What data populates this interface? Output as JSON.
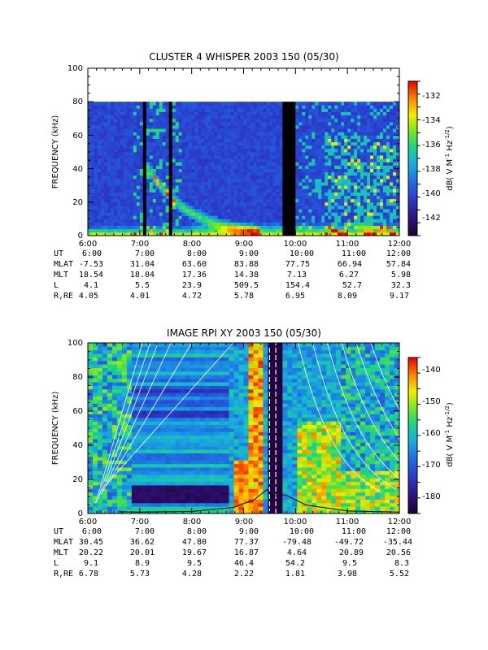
{
  "chart_data": [
    {
      "type": "heatmap",
      "title": "CLUSTER 4 WHISPER 2003 150 (05/30)",
      "ylabel": "FREQUENCY (kHz)",
      "ylim": [
        0,
        100
      ],
      "data_ymax": 80,
      "yticks": [
        "0",
        "20",
        "40",
        "60",
        "80",
        "100"
      ],
      "xlim_hours": [
        6,
        12
      ],
      "xticks": [
        "6:00",
        "7:00",
        "8:00",
        "9:00",
        "10:00",
        "11:00",
        "12:00"
      ],
      "colorbar": {
        "label_parts": [
          "dB( V M",
          "-1",
          " Hz",
          "-1/2",
          ")"
        ],
        "range": [
          -143.5,
          -131
        ],
        "ticks": [
          "-132",
          "-134",
          "-136",
          "-138",
          "-140",
          "-142"
        ]
      },
      "ephemeris": [
        {
          "name": "UT",
          "values": [
            "6:00",
            "7:00",
            "8:00",
            "9:00",
            "10:00",
            "11:00",
            "12:00"
          ]
        },
        {
          "name": "MLAT",
          "values": [
            "-7.53",
            "31.04",
            "63.60",
            "83.88",
            "77.75",
            "66.94",
            "57.84"
          ]
        },
        {
          "name": "MLT",
          "values": [
            "18.54",
            "18.04",
            "17.36",
            "14.38",
            "7.13",
            "6.27",
            "5.98"
          ]
        },
        {
          "name": "L",
          "values": [
            "4.1",
            "5.5",
            "23.9",
            "509.5",
            "154.4",
            "52.7",
            "32.3"
          ]
        },
        {
          "name": "R,RE",
          "values": [
            "4.05",
            "4.01",
            "4.72",
            "5.78",
            "6.95",
            "8.09",
            "9.17"
          ]
        }
      ]
    },
    {
      "type": "heatmap",
      "title": "IMAGE RPI XY 2003 150 (05/30)",
      "ylabel": "FREQUENCY (kHz)",
      "ylim": [
        0,
        100
      ],
      "data_ymax": 100,
      "yticks": [
        "0",
        "20",
        "40",
        "60",
        "80",
        "100"
      ],
      "xlim_hours": [
        6,
        12
      ],
      "xticks": [
        "6:00",
        "7:00",
        "8:00",
        "9:00",
        "10:00",
        "11:00",
        "12:00"
      ],
      "colorbar": {
        "label_parts": [
          "dB( V M",
          "-1",
          " Hz",
          "-1/2",
          ")"
        ],
        "range": [
          -185,
          -136
        ],
        "ticks": [
          "-140",
          "-150",
          "-160",
          "-170",
          "-180"
        ]
      },
      "ephemeris": [
        {
          "name": "UT",
          "values": [
            "6:00",
            "7:00",
            "8:00",
            "9:00",
            "10:00",
            "11:00",
            "12:00"
          ]
        },
        {
          "name": "MLAT",
          "values": [
            "30.45",
            "36.62",
            "47.80",
            "77.37",
            "-79.48",
            "-49.72",
            "-35.44"
          ]
        },
        {
          "name": "MLT",
          "values": [
            "20.22",
            "20.01",
            "19.67",
            "16.87",
            "4.64",
            "20.89",
            "20.56"
          ]
        },
        {
          "name": "L",
          "values": [
            "9.1",
            "8.9",
            "9.5",
            "46.4",
            "54.2",
            "9.5",
            "8.3"
          ]
        },
        {
          "name": "R,RE",
          "values": [
            "6.78",
            "5.73",
            "4.28",
            "2.22",
            "1.81",
            "3.98",
            "5.52"
          ]
        }
      ]
    }
  ]
}
